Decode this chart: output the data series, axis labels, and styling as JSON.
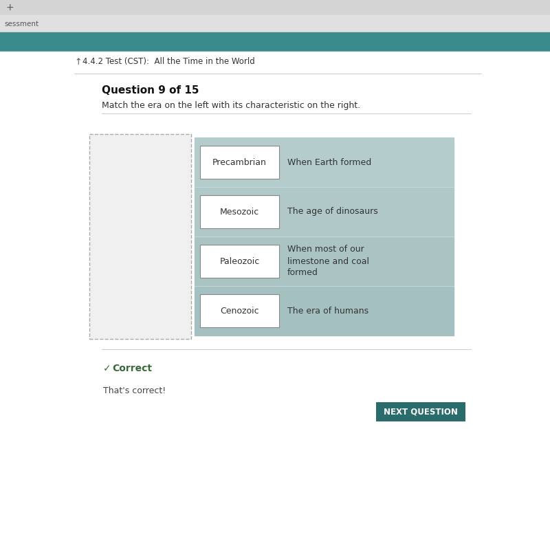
{
  "browser_tab_bg": "#d4d4d4",
  "browser_nav_bg": "#e0e0e0",
  "teal_bar_color": "#3a8b8b",
  "page_bg": "#f2f2f2",
  "content_bg": "#ffffff",
  "breadcrumb_text": "4.4.2 Test (CST):  All the Time in the World",
  "question_label": "Question 9 of 15",
  "instruction": "Match the era on the left with its characteristic on the right.",
  "rows": [
    {
      "era": "Precambrian",
      "description": "When Earth formed"
    },
    {
      "era": "Mesozoic",
      "description": "The age of dinosaurs"
    },
    {
      "era": "Paleozoic",
      "description": "When most of our\nlimestone and coal\nformed"
    },
    {
      "era": "Cenozoic",
      "description": "The era of humans"
    }
  ],
  "row_colors": [
    "#b5cccc",
    "#b0c8c8",
    "#aac4c4",
    "#a5c0c0"
  ],
  "era_box_bg": "#ffffff",
  "era_box_border": "#888888",
  "era_text_color": "#333333",
  "desc_text_color": "#333333",
  "dashed_box_color": "#aaaaaa",
  "dashed_box_bg": "#f0f0f0",
  "correct_color": "#3a6b3a",
  "correct_text": "Correct",
  "feedback_text": "That's correct!",
  "next_btn_bg": "#2a6b6b",
  "next_btn_text": "NEXT QUESTION",
  "next_btn_text_color": "#ffffff",
  "sep_color": "#cccccc",
  "tab_plus": "+",
  "nav_label": "sessment",
  "breadcrumb_icon": "↑"
}
